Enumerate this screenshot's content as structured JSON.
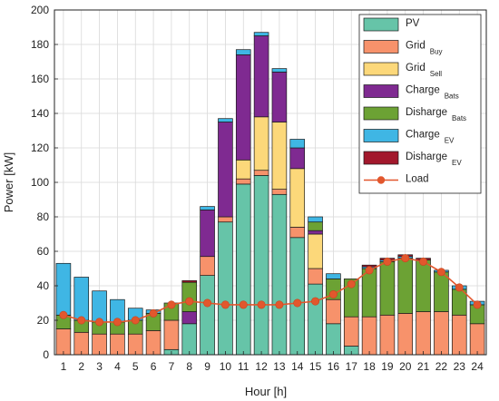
{
  "chart_data": {
    "type": "bar",
    "stacked": true,
    "xlabel": "Hour [h]",
    "ylabel": "Power [kW]",
    "ylim": [
      0,
      200
    ],
    "yticks": [
      0,
      20,
      40,
      60,
      80,
      100,
      120,
      140,
      160,
      180,
      200
    ],
    "grid": true,
    "legend_position": "top-right",
    "categories": [
      "1",
      "2",
      "3",
      "4",
      "5",
      "6",
      "7",
      "8",
      "9",
      "10",
      "11",
      "12",
      "13",
      "14",
      "15",
      "16",
      "17",
      "18",
      "19",
      "20",
      "21",
      "22",
      "23",
      "24"
    ],
    "series": [
      {
        "name": "PV",
        "sub": "",
        "color": "#66c4a8",
        "values": [
          0,
          0,
          0,
          0,
          0,
          0,
          3,
          18,
          46,
          77,
          99,
          104,
          93,
          68,
          41,
          18,
          5,
          0,
          0,
          0,
          0,
          0,
          0,
          0
        ]
      },
      {
        "name": "Grid",
        "sub": "Buy",
        "color": "#f7926b",
        "values": [
          15,
          13,
          12,
          12,
          12,
          14,
          17,
          0,
          11,
          3,
          3,
          3,
          3,
          6,
          9,
          14,
          17,
          22,
          23,
          24,
          25,
          25,
          23,
          18
        ]
      },
      {
        "name": "Grid",
        "sub": "Sell",
        "color": "#fcd87a",
        "values": [
          0,
          0,
          0,
          0,
          0,
          0,
          0,
          0,
          0,
          0,
          11,
          31,
          39,
          34,
          20,
          0,
          0,
          0,
          0,
          0,
          0,
          0,
          0,
          0
        ]
      },
      {
        "name": "Charge",
        "sub": "Bats",
        "color": "#7f2a91",
        "values": [
          0,
          0,
          0,
          0,
          0,
          0,
          0,
          7,
          27,
          55,
          61,
          47,
          29,
          12,
          2,
          0,
          0,
          0,
          0,
          0,
          0,
          0,
          0,
          0
        ]
      },
      {
        "name": "Disharge",
        "sub": "Bats",
        "color": "#6ca234",
        "values": [
          8,
          7,
          7,
          7,
          8,
          10,
          10,
          17,
          0,
          0,
          0,
          0,
          0,
          0,
          5,
          12,
          22,
          28,
          31,
          32,
          30,
          23,
          15,
          11
        ]
      },
      {
        "name": "Charge",
        "sub": "EV",
        "color": "#3fb6e4",
        "values": [
          30,
          25,
          18,
          13,
          7,
          2,
          0,
          0,
          2,
          2,
          3,
          2,
          2,
          5,
          3,
          3,
          0,
          1,
          1,
          1,
          0,
          1,
          2,
          2
        ]
      },
      {
        "name": "Disharge",
        "sub": "EV",
        "color": "#a2182c",
        "values": [
          0,
          0,
          0,
          0,
          0,
          0,
          0,
          1,
          0,
          0,
          0,
          0,
          0,
          0,
          0,
          0,
          0,
          1,
          1,
          1,
          1,
          0,
          0,
          0
        ]
      }
    ],
    "line_series": {
      "name": "Load",
      "sub": "",
      "color": "#e2572d",
      "values": [
        23,
        20,
        19,
        19,
        20,
        24,
        29,
        31,
        30,
        29,
        29,
        29,
        29,
        30,
        31,
        35,
        41,
        49,
        54,
        56,
        54,
        48,
        39,
        29
      ]
    }
  }
}
